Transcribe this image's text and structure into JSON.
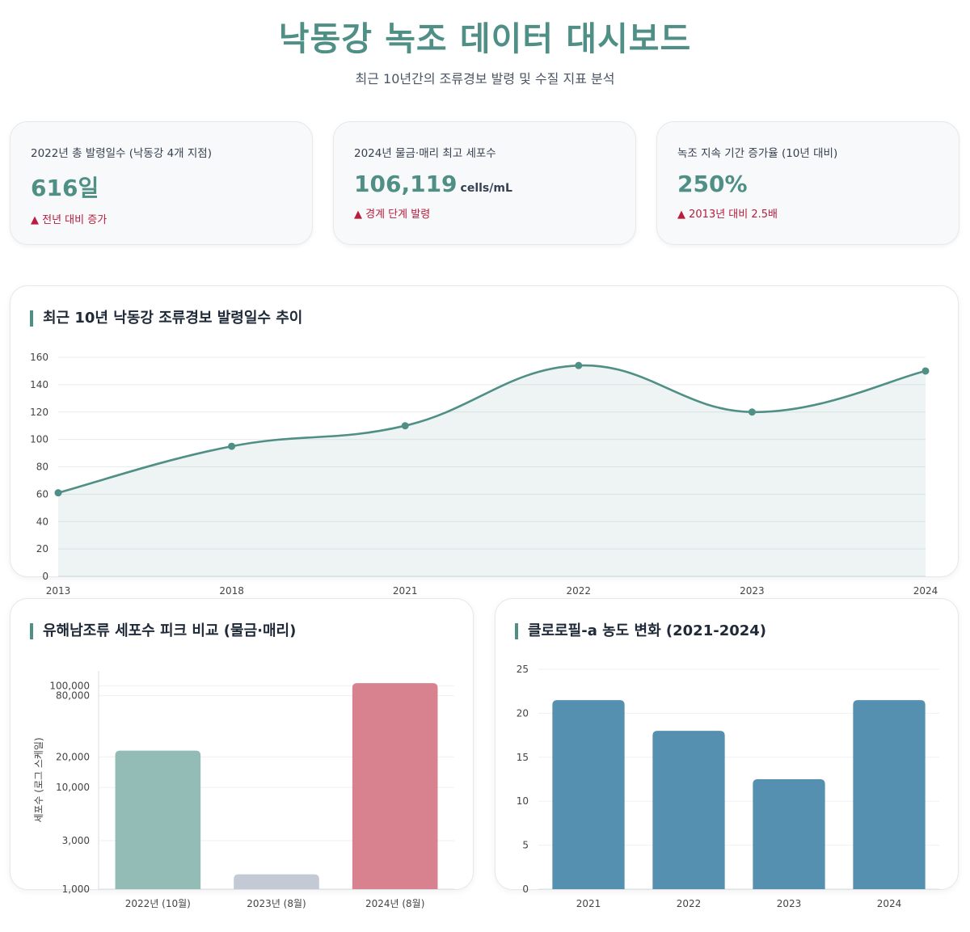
{
  "header": {
    "title": "낙동강 녹조 데이터 대시보드",
    "subtitle": "최근 10년간의 조류경보 발령 및 수질 지표 분석"
  },
  "kpis": [
    {
      "label": "2022년 총 발령일수 (낙동강 4개 지점)",
      "value": "616일",
      "unit": "",
      "change": "▲ 전년 대비 증가"
    },
    {
      "label": "2024년 물금·매리 최고 세포수",
      "value": "106,119",
      "unit": "cells/mL",
      "change": "▲ 경계 단계 발령"
    },
    {
      "label": "녹조 지속 기간 증가율 (10년 대비)",
      "value": "250%",
      "unit": "",
      "change": "▲ 2013년 대비 2.5배"
    }
  ],
  "colors": {
    "accent": "#4f8f86",
    "alert": "#b91c3c",
    "bar_blue": "#5590b0",
    "bar_green": "#93bcb6",
    "bar_gray": "#c3cad6",
    "bar_red": "#d9828f"
  },
  "chart_data": [
    {
      "type": "area",
      "title": "최근 10년 낙동강 조류경보 발령일수 추이",
      "categories": [
        "2013",
        "2018",
        "2021",
        "2022",
        "2023",
        "2024"
      ],
      "values": [
        61,
        95,
        110,
        154,
        120,
        150
      ],
      "ylim": [
        0,
        160
      ],
      "yticks": [
        0,
        20,
        40,
        60,
        80,
        100,
        120,
        140,
        160
      ],
      "xlabel": "",
      "ylabel": "",
      "grid": true
    },
    {
      "type": "bar",
      "title": "유해남조류 세포수 피크 비교 (물금·매리)",
      "categories": [
        "2022년 (10월)",
        "2023년 (8월)",
        "2024년 (8월)"
      ],
      "values": [
        23000,
        1400,
        106119
      ],
      "yscale": "log",
      "ylim": [
        1000,
        140000
      ],
      "yticks": [
        1000,
        3000,
        10000,
        20000,
        80000,
        100000
      ],
      "ytick_labels": [
        "1,000",
        "3,000",
        "10,000",
        "20,000",
        "80,000",
        "100,000"
      ],
      "ylabel": "세포수 (로그 스케일)",
      "xlabel": "",
      "grid": true
    },
    {
      "type": "bar",
      "title": "클로로필-a 농도 변화 (2021-2024)",
      "categories": [
        "2021",
        "2022",
        "2023",
        "2024"
      ],
      "values": [
        21.5,
        18,
        12.5,
        21.5
      ],
      "ylim": [
        0,
        25
      ],
      "yticks": [
        0,
        5,
        10,
        15,
        20,
        25
      ],
      "xlabel": "",
      "ylabel": "",
      "grid": true
    }
  ]
}
